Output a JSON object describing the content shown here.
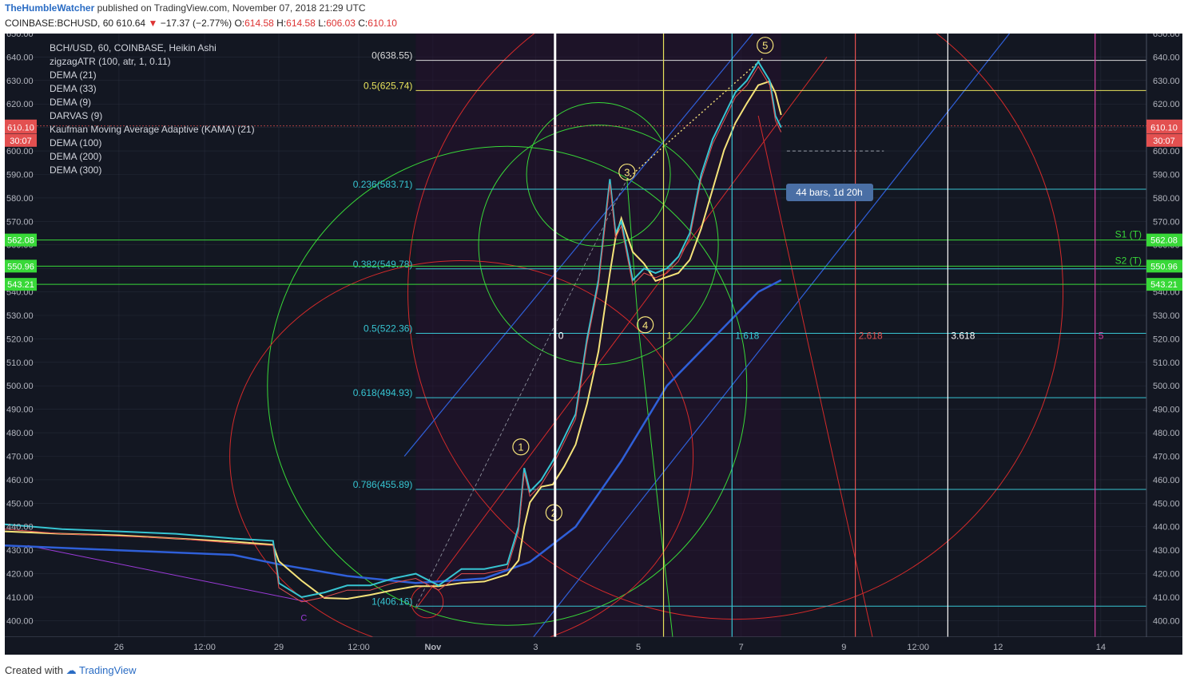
{
  "header": {
    "author": "TheHumbleWatcher",
    "published_text": "published on TradingView.com, November 07, 2018 21:29 UTC"
  },
  "symbol_line": {
    "symbol": "COINBASE:BCHUSD,",
    "timeframe": "60",
    "last": "610.64",
    "change": "−17.37 (−2.77%)",
    "open_label": "O:",
    "open": "614.58",
    "high_label": "H:",
    "high": "614.58",
    "low_label": "L:",
    "low": "606.03",
    "close_label": "C:",
    "close": "610.10"
  },
  "legend": [
    "BCH/USD, 60, COINBASE, Heikin Ashi",
    "zigzagATR (100, atr, 1, 0.11)",
    "DEMA (21)",
    "DEMA (33)",
    "DEMA (9)",
    "DARVAS (9)",
    "Kaufman Moving Average Adaptive (KAMA) (21)",
    "DEMA (100)",
    "DEMA (200)",
    "DEMA (300)"
  ],
  "chart_data": {
    "type": "line",
    "title": "BCH/USD, 60, COINBASE, Heikin Ashi",
    "ylim": [
      393,
      650
    ],
    "y_ticks": [
      400,
      410,
      420,
      430,
      440,
      450,
      460,
      470,
      480,
      490,
      500,
      510,
      520,
      530,
      540,
      550,
      560,
      570,
      580,
      590,
      600,
      610,
      620,
      630,
      640,
      650
    ],
    "y_tick_labels": [
      "400.00",
      "410.00",
      "420.00",
      "430.00",
      "440.00",
      "450.00",
      "460.00",
      "470.00",
      "480.00",
      "490.00",
      "500.00",
      "510.00",
      "520.00",
      "530.00",
      "540.00",
      "550.00",
      "560.00",
      "570.00",
      "580.00",
      "590.00",
      "600.00",
      "610.00",
      "620.00",
      "630.00",
      "640.00",
      "650.00"
    ],
    "x_ticks": [
      {
        "label": "26",
        "pos": 0.1
      },
      {
        "label": "12:00",
        "pos": 0.175
      },
      {
        "label": "29",
        "pos": 0.24
      },
      {
        "label": "12:00",
        "pos": 0.31
      },
      {
        "label": "Nov",
        "pos": 0.375
      },
      {
        "label": "3",
        "pos": 0.465
      },
      {
        "label": "5",
        "pos": 0.555
      },
      {
        "label": "7",
        "pos": 0.645
      },
      {
        "label": "9",
        "pos": 0.735
      },
      {
        "label": "12:00",
        "pos": 0.8
      },
      {
        "label": "12",
        "pos": 0.87
      },
      {
        "label": "14",
        "pos": 0.96
      }
    ],
    "price_series": {
      "name": "BCH/USD",
      "t": [
        0.0,
        0.05,
        0.1,
        0.15,
        0.2,
        0.235,
        0.24,
        0.26,
        0.28,
        0.3,
        0.32,
        0.34,
        0.36,
        0.38,
        0.4,
        0.42,
        0.44,
        0.45,
        0.455,
        0.46,
        0.47,
        0.48,
        0.49,
        0.5,
        0.51,
        0.52,
        0.53,
        0.535,
        0.54,
        0.55,
        0.56,
        0.57,
        0.58,
        0.59,
        0.6,
        0.61,
        0.62,
        0.63,
        0.64,
        0.65,
        0.66,
        0.67,
        0.675,
        0.68
      ],
      "v": [
        441,
        439,
        438,
        437,
        435,
        434,
        416,
        410,
        412,
        415,
        415,
        418,
        420,
        415,
        422,
        422,
        424,
        440,
        465,
        455,
        460,
        468,
        478,
        488,
        520,
        545,
        588,
        565,
        570,
        545,
        550,
        548,
        550,
        555,
        565,
        590,
        605,
        615,
        625,
        630,
        638,
        630,
        615,
        610
      ]
    },
    "dema_slow": {
      "name": "DEMA (300)",
      "t": [
        0.0,
        0.1,
        0.2,
        0.24,
        0.3,
        0.36,
        0.42,
        0.46,
        0.5,
        0.54,
        0.58,
        0.62,
        0.66,
        0.68
      ],
      "v": [
        432,
        430,
        428,
        424,
        419,
        416,
        418,
        425,
        440,
        468,
        500,
        520,
        540,
        545
      ]
    },
    "fib_retracement": [
      {
        "label": "0(638.55)",
        "value": 638.55,
        "color": "#d9d9d9"
      },
      {
        "label": "0.5(625.74)",
        "value": 625.74,
        "color": "#e8e35c"
      },
      {
        "label": "0.236(583.71)",
        "value": 583.71,
        "color": "#37c5d2"
      },
      {
        "label": "0.382(549.78)",
        "value": 549.78,
        "color": "#37c5d2"
      },
      {
        "label": "0.5(522.36)",
        "value": 522.36,
        "color": "#37c5d2"
      },
      {
        "label": "0.618(494.93)",
        "value": 494.93,
        "color": "#37c5d2"
      },
      {
        "label": "0.786(455.89)",
        "value": 455.89,
        "color": "#37c5d2"
      },
      {
        "label": "1(406.16)",
        "value": 406.16,
        "color": "#37c5d2"
      }
    ],
    "pivots": [
      {
        "label": "S1 (T)",
        "value": 562.08
      },
      {
        "label": "S2 (T)",
        "value": 550.96
      },
      {
        "label": "",
        "value": 543.21
      }
    ],
    "price_badges": [
      {
        "text": "610.64",
        "value": 610.64,
        "color": "#e35050"
      },
      {
        "text": "610.10",
        "value": 610.1,
        "color": "#e35050"
      },
      {
        "text": "30:07",
        "value": 604.5,
        "color": "#e35050"
      },
      {
        "text": "562.08",
        "value": 562.08,
        "color": "#38d838"
      },
      {
        "text": "550.96",
        "value": 550.96,
        "color": "#38d838"
      },
      {
        "text": "543.21",
        "value": 543.21,
        "color": "#38d838"
      }
    ],
    "fib_time_labels": [
      {
        "text": "0",
        "pos": 0.482,
        "color": "#ffffff"
      },
      {
        "text": "1",
        "pos": 0.577,
        "color": "#e8e35c"
      },
      {
        "text": "1.618",
        "pos": 0.637,
        "color": "#37c5d2"
      },
      {
        "text": "2.618",
        "pos": 0.745,
        "color": "#e35050"
      },
      {
        "text": "3.618",
        "pos": 0.826,
        "color": "#ffffff"
      },
      {
        "text": "5",
        "pos": 0.955,
        "color": "#d040a0"
      }
    ],
    "elliott_waves": [
      {
        "label": "1",
        "t": 0.452,
        "v": 474
      },
      {
        "label": "2",
        "t": 0.481,
        "v": 446
      },
      {
        "label": "3",
        "t": 0.545,
        "v": 591
      },
      {
        "label": "4",
        "t": 0.561,
        "v": 526
      },
      {
        "label": "5",
        "t": 0.666,
        "v": 645
      },
      {
        "label": "C",
        "t": 0.262,
        "v": 402
      }
    ],
    "measure_label": "44 bars, 1d 20h"
  },
  "footer": {
    "created_with": "Created with",
    "brand": "TradingView"
  },
  "colors": {
    "background": "#131722",
    "grid": "#363c4e",
    "axis_text": "#b2b5be",
    "price": "#e35050",
    "teal": "#37c5d2",
    "green": "#38d838",
    "yellow": "#f5e37a",
    "blue": "#2f5fd8",
    "red": "#d42a2a"
  }
}
